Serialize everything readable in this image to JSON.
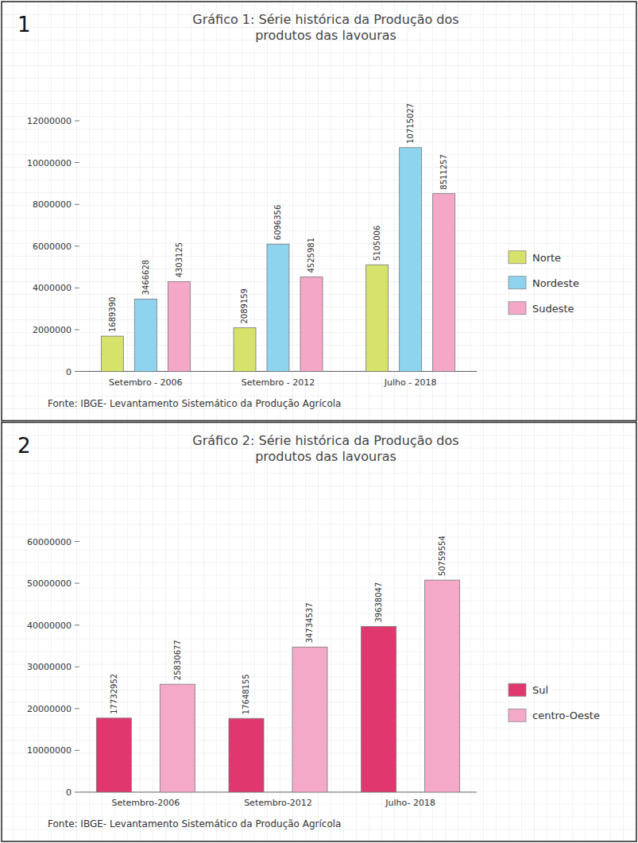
{
  "chart_data": [
    {
      "type": "bar",
      "panel": "1",
      "title": "Gráfico 1: Série histórica da Produção dos produtos das lavouras",
      "note": "Fonte: IBGE- Levantamento Sistemático da Produção Agrícola",
      "categories": [
        "Setembro - 2006",
        "Setembro - 2012",
        "Julho - 2018"
      ],
      "series": [
        {
          "name": "Norte",
          "color": "#d6e26a",
          "values": [
            1689390,
            2089159,
            5105006
          ]
        },
        {
          "name": "Nordeste",
          "color": "#8fd4ee",
          "values": [
            3466628,
            6096356,
            10715027
          ]
        },
        {
          "name": "Sudeste",
          "color": "#f4a7c7",
          "values": [
            4303125,
            4525981,
            8511257
          ]
        }
      ],
      "ylim": [
        0,
        12000000
      ],
      "yticks": [
        0,
        2000000,
        4000000,
        6000000,
        8000000,
        10000000,
        12000000
      ],
      "grid": false,
      "legend": "right",
      "data_labels": true
    },
    {
      "type": "bar",
      "panel": "2",
      "title": "Gráfico 2: Série histórica da Produção dos produtos das lavouras",
      "note": "Fonte: IBGE- Levantamento Sistemático da Produção Agrícola",
      "categories": [
        "Setembro-2006",
        "Setembro-2012",
        "Julho- 2018"
      ],
      "series": [
        {
          "name": "Sul",
          "color": "#e0386e",
          "values": [
            17732952,
            17648155,
            39638047
          ]
        },
        {
          "name": "centro-Oeste",
          "color": "#f5a9c9",
          "values": [
            25830677,
            34734537,
            50759554
          ]
        }
      ],
      "ylim": [
        0,
        60000000
      ],
      "yticks": [
        0,
        10000000,
        20000000,
        30000000,
        40000000,
        50000000,
        60000000
      ],
      "grid": false,
      "legend": "right",
      "data_labels": true
    }
  ]
}
